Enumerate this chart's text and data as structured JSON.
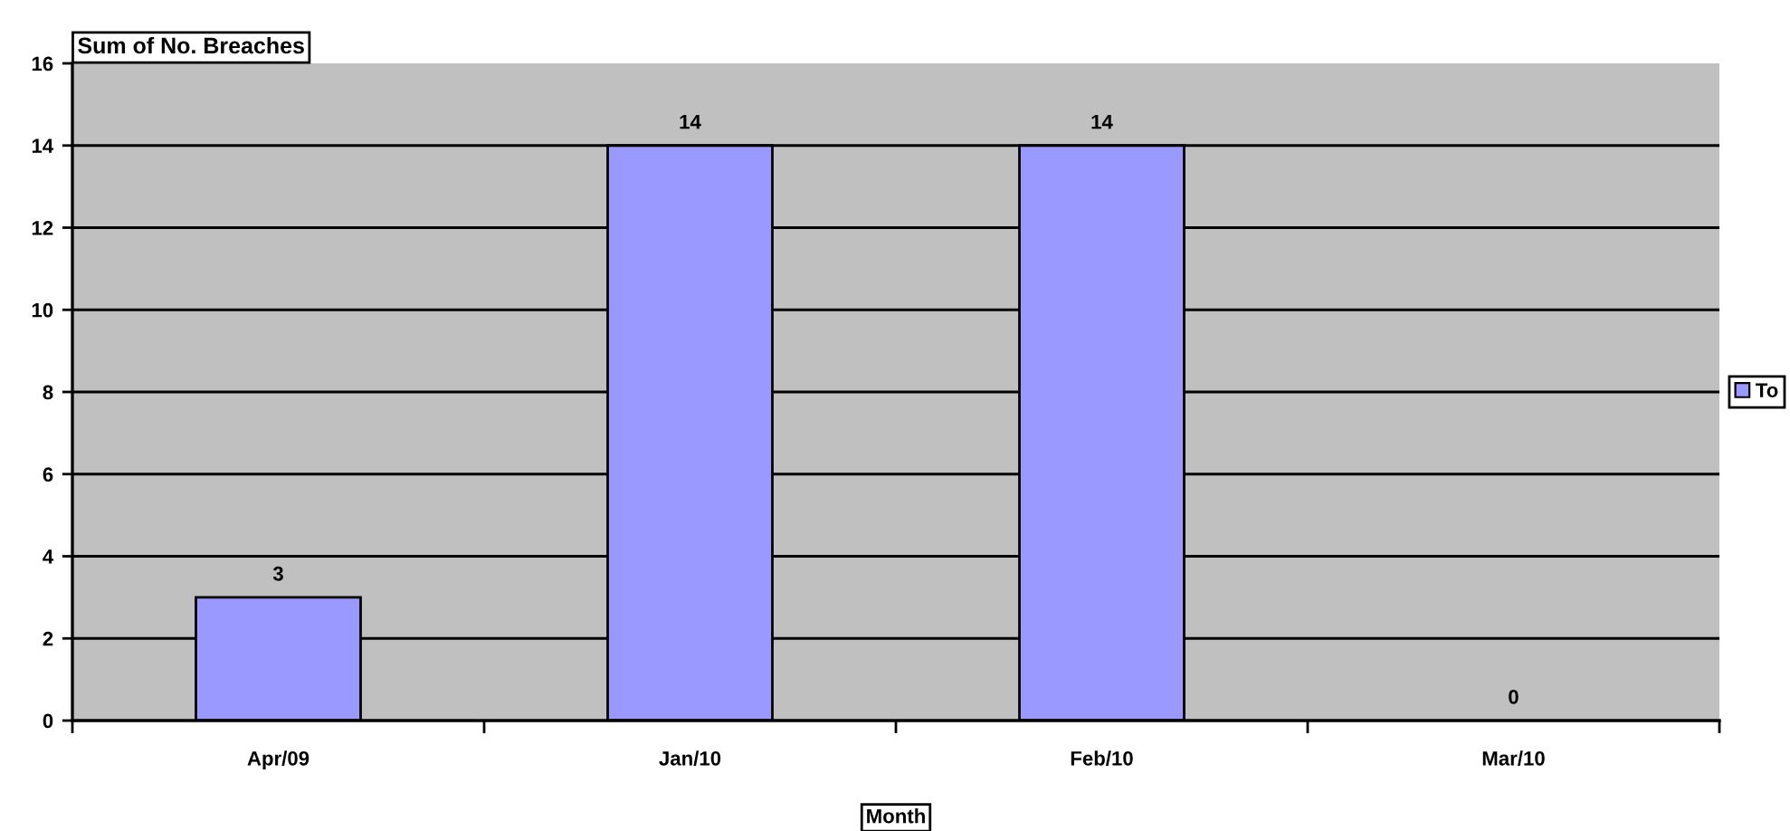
{
  "chart_data": {
    "type": "bar",
    "ylabel": "Sum of No. Breaches",
    "xlabel": "Month",
    "categories": [
      "Apr/09",
      "Jan/10",
      "Feb/10",
      "Mar/10"
    ],
    "series": [
      {
        "name": "To",
        "color": "#9999ff",
        "values": [
          3,
          14,
          14,
          0
        ]
      }
    ],
    "ylim": [
      0,
      16
    ],
    "yticks": [
      0,
      2,
      4,
      6,
      8,
      10,
      12,
      14,
      16
    ],
    "grid": "y",
    "legend": "right",
    "data_labels": true
  }
}
